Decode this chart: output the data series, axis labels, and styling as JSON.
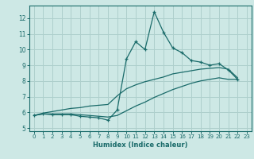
{
  "xlabel": "Humidex (Indice chaleur)",
  "xlim": [
    -0.5,
    23.5
  ],
  "ylim": [
    4.8,
    12.8
  ],
  "yticks": [
    5,
    6,
    7,
    8,
    9,
    10,
    11,
    12
  ],
  "xticks": [
    0,
    1,
    2,
    3,
    4,
    5,
    6,
    7,
    8,
    9,
    10,
    11,
    12,
    13,
    14,
    15,
    16,
    17,
    18,
    19,
    20,
    21,
    22,
    23
  ],
  "bg_color": "#cde8e5",
  "line_color": "#1a6b6a",
  "grid_color": "#aecfcc",
  "series_zigzag": [
    [
      0,
      5.8
    ],
    [
      1,
      5.9
    ],
    [
      2,
      5.85
    ],
    [
      3,
      5.85
    ],
    [
      4,
      5.85
    ],
    [
      5,
      5.75
    ],
    [
      6,
      5.7
    ],
    [
      7,
      5.65
    ],
    [
      8,
      5.5
    ],
    [
      9,
      6.15
    ],
    [
      10,
      9.4
    ],
    [
      11,
      10.5
    ],
    [
      12,
      10.0
    ],
    [
      13,
      12.4
    ],
    [
      14,
      11.1
    ],
    [
      15,
      10.1
    ],
    [
      16,
      9.8
    ],
    [
      17,
      9.3
    ],
    [
      18,
      9.2
    ],
    [
      19,
      9.0
    ],
    [
      20,
      9.1
    ],
    [
      21,
      8.7
    ],
    [
      22,
      8.1
    ]
  ],
  "series_low": [
    [
      0,
      5.8
    ],
    [
      1,
      5.9
    ],
    [
      2,
      5.9
    ],
    [
      3,
      5.9
    ],
    [
      4,
      5.9
    ],
    [
      5,
      5.85
    ],
    [
      6,
      5.8
    ],
    [
      7,
      5.75
    ],
    [
      8,
      5.7
    ],
    [
      9,
      5.8
    ],
    [
      10,
      6.1
    ],
    [
      11,
      6.4
    ],
    [
      12,
      6.65
    ],
    [
      13,
      6.95
    ],
    [
      14,
      7.2
    ],
    [
      15,
      7.45
    ],
    [
      16,
      7.65
    ],
    [
      17,
      7.85
    ],
    [
      18,
      8.0
    ],
    [
      19,
      8.1
    ],
    [
      20,
      8.2
    ],
    [
      21,
      8.1
    ],
    [
      22,
      8.1
    ]
  ],
  "series_mid": [
    [
      0,
      5.8
    ],
    [
      1,
      5.95
    ],
    [
      2,
      6.05
    ],
    [
      3,
      6.15
    ],
    [
      4,
      6.25
    ],
    [
      5,
      6.3
    ],
    [
      6,
      6.4
    ],
    [
      7,
      6.45
    ],
    [
      8,
      6.5
    ],
    [
      9,
      7.05
    ],
    [
      10,
      7.5
    ],
    [
      11,
      7.75
    ],
    [
      12,
      7.95
    ],
    [
      13,
      8.1
    ],
    [
      14,
      8.25
    ],
    [
      15,
      8.45
    ],
    [
      16,
      8.55
    ],
    [
      17,
      8.65
    ],
    [
      18,
      8.75
    ],
    [
      19,
      8.8
    ],
    [
      20,
      8.85
    ],
    [
      21,
      8.75
    ],
    [
      22,
      8.2
    ]
  ]
}
